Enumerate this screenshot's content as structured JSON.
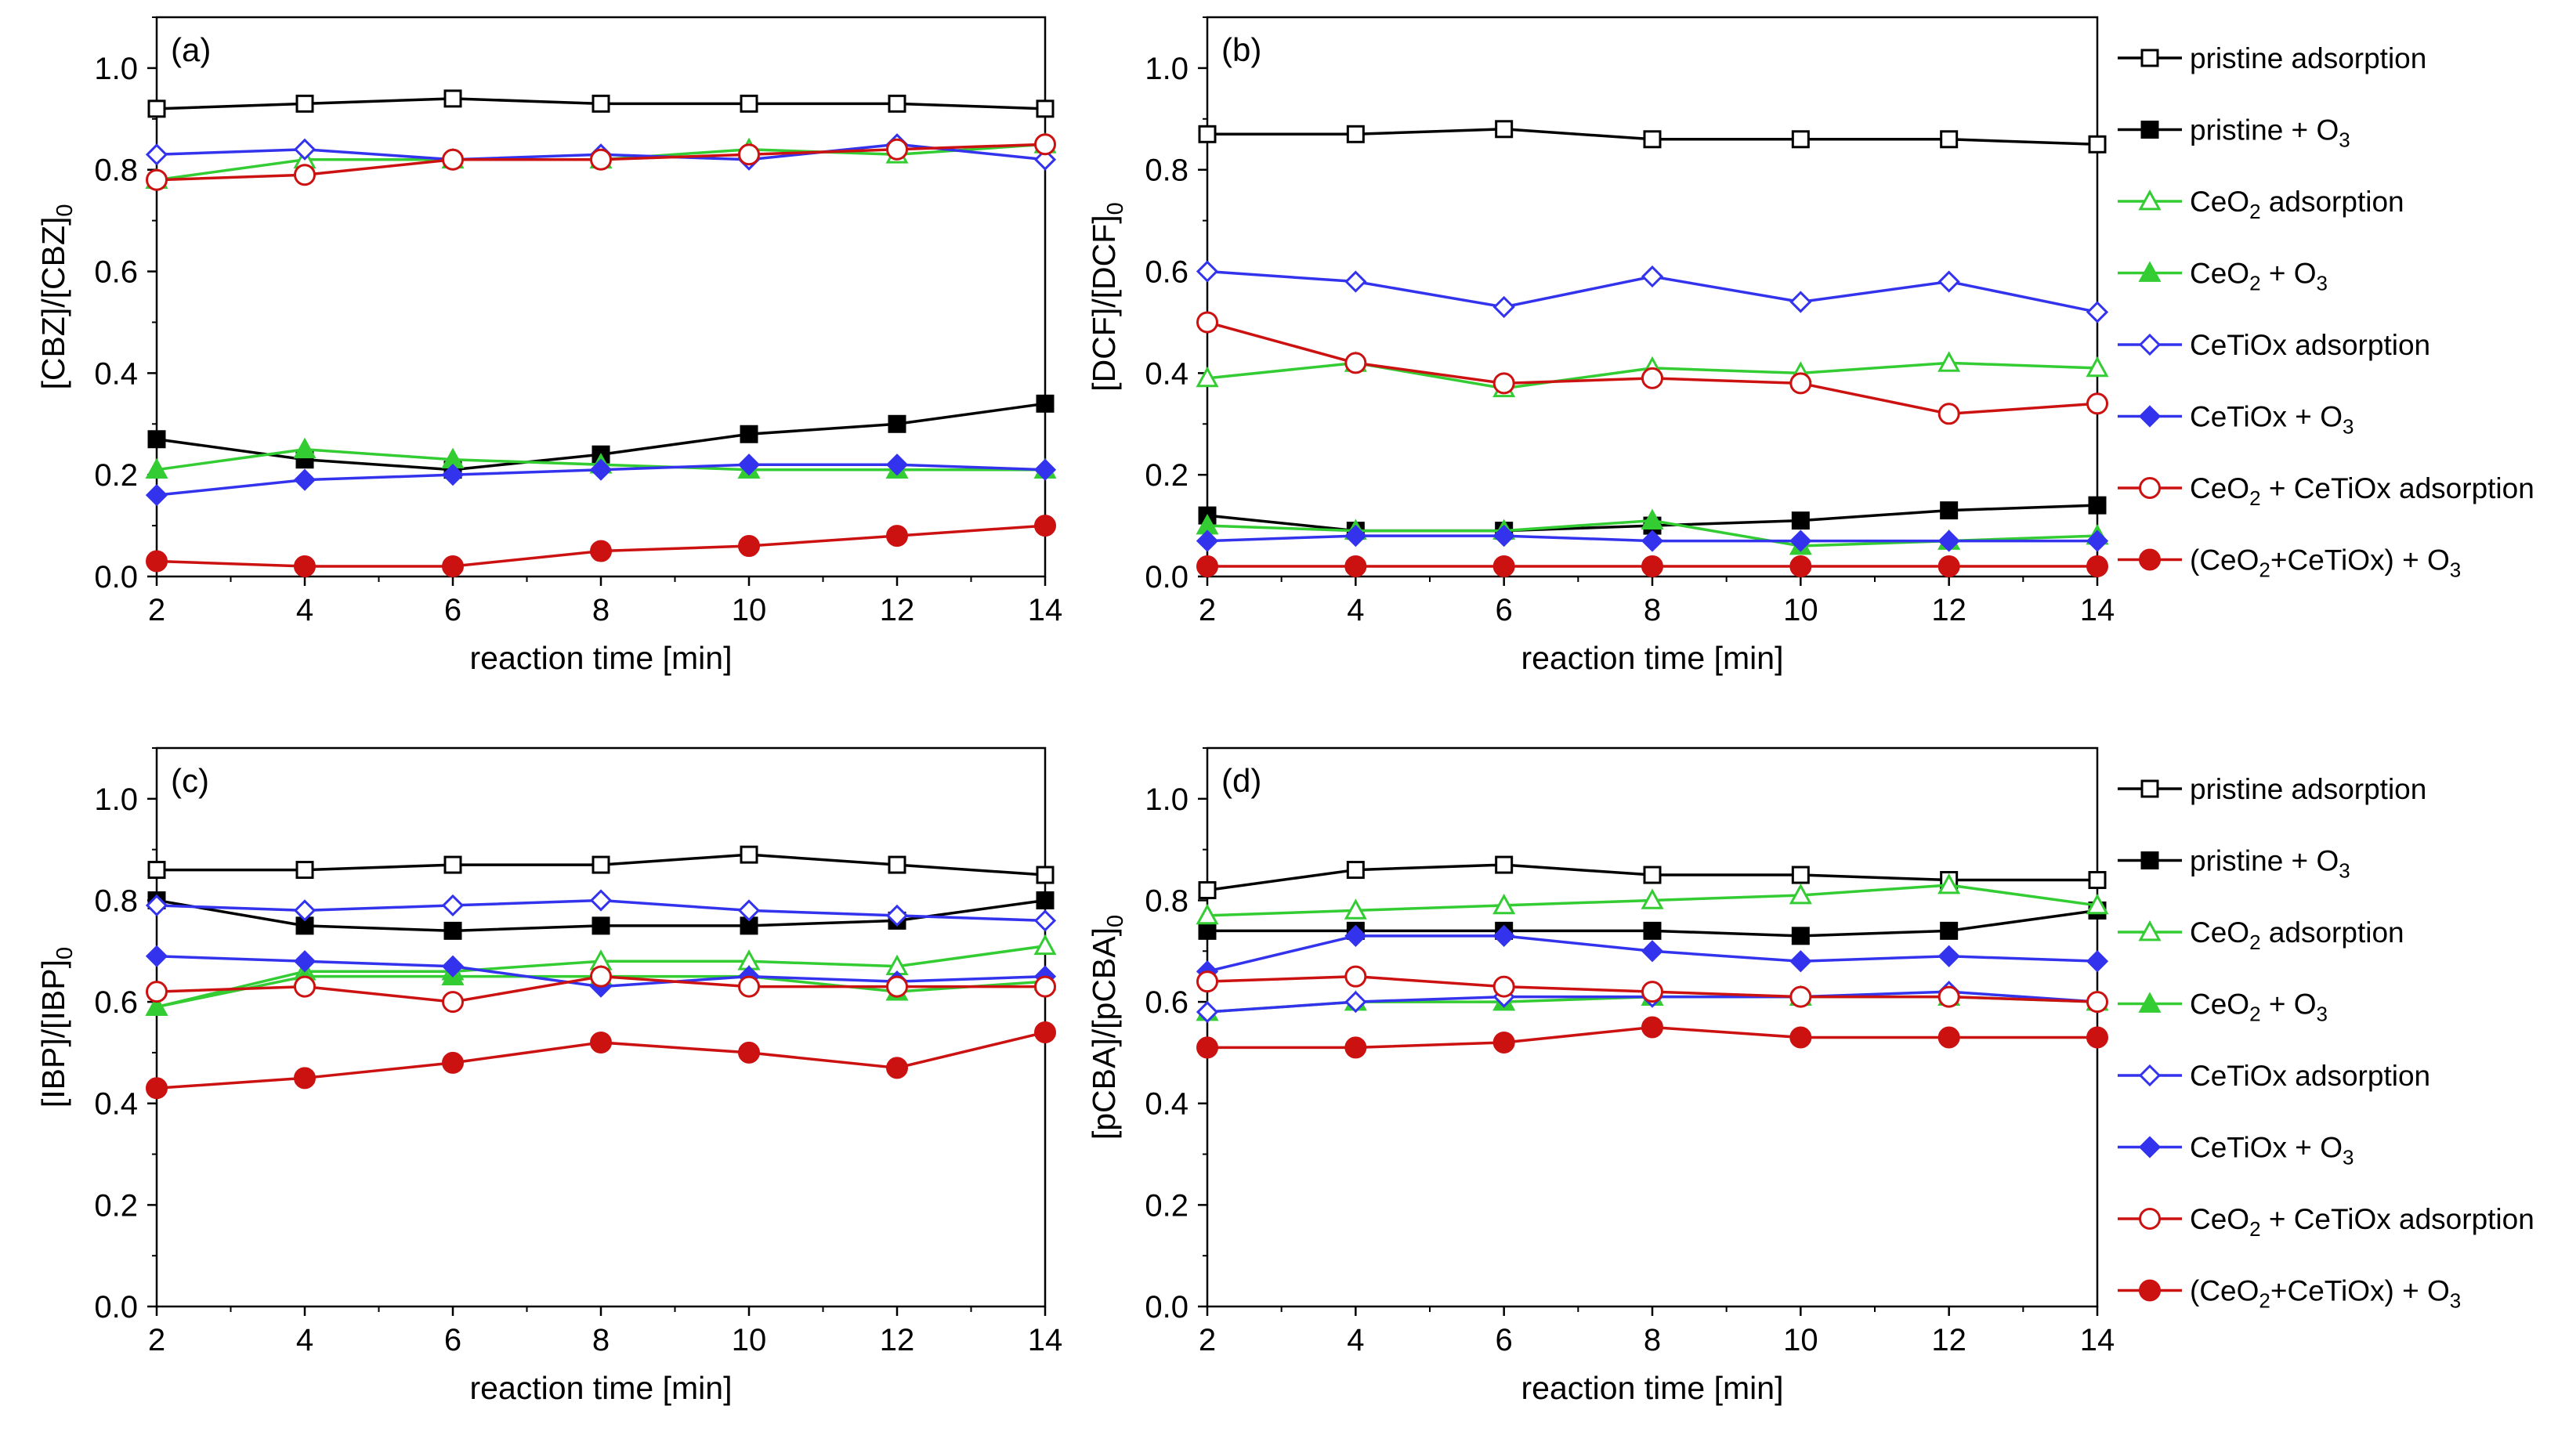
{
  "series_meta": [
    {
      "name": "pristine adsorption",
      "color": "#000000",
      "marker": "square",
      "filled": false,
      "label": {
        "a": "pristine adsorption",
        "s": "",
        "b": ""
      }
    },
    {
      "name": "pristine + O3",
      "color": "#000000",
      "marker": "square",
      "filled": true,
      "label": {
        "a": "pristine + O",
        "s": "3",
        "b": ""
      }
    },
    {
      "name": "CeO2 adsorption",
      "color": "#33cc33",
      "marker": "triangle",
      "filled": false,
      "label": {
        "a": "CeO",
        "s": "2",
        "b": " adsorption"
      }
    },
    {
      "name": "CeO2 + O3",
      "color": "#33cc33",
      "marker": "triangle",
      "filled": true,
      "label": {
        "a": "CeO",
        "s": "2",
        "b": " + O3"
      }
    },
    {
      "name": "CeTiOx adsorption",
      "color": "#3333ee",
      "marker": "diamond",
      "filled": false,
      "label": {
        "a": "CeTiOx adsorption",
        "s": "",
        "b": ""
      }
    },
    {
      "name": "CeTiOx + O3",
      "color": "#3333ee",
      "marker": "diamond",
      "filled": true,
      "label": {
        "a": "CeTiOx + O",
        "s": "3",
        "b": ""
      }
    },
    {
      "name": "CeO2 + CeTiOx adsorption",
      "color": "#cc1111",
      "marker": "circle",
      "filled": false,
      "label": {
        "a": "CeO",
        "s": "2",
        "b": " + CeTiOx adsorption"
      }
    },
    {
      "name": "(CeO2+CeTiOx) + O3",
      "color": "#cc1111",
      "marker": "circle",
      "filled": true,
      "label": {
        "a": "(CeO",
        "s": "2",
        "b": "+CeTiOx) + O3"
      }
    }
  ],
  "chart_data": [
    {
      "type": "line",
      "panel_label": "(a)",
      "title": "",
      "xlabel": "reaction time [min]",
      "ylabel": {
        "main": "[CBZ]/[CBZ]",
        "sub": "0"
      },
      "x": [
        2,
        4,
        6,
        8,
        10,
        12,
        14
      ],
      "xticks": [
        "2",
        "4",
        "6",
        "8",
        "10",
        "12",
        "14"
      ],
      "xlim": [
        2,
        14
      ],
      "ylim": [
        0,
        1.1
      ],
      "yticks": [
        "0.0",
        "0.2",
        "0.4",
        "0.6",
        "0.8",
        "1.0"
      ],
      "series": [
        {
          "name": "pristine adsorption",
          "values": [
            0.92,
            0.93,
            0.94,
            0.93,
            0.93,
            0.93,
            0.92
          ]
        },
        {
          "name": "pristine + O3",
          "values": [
            0.27,
            0.23,
            0.21,
            0.24,
            0.28,
            0.3,
            0.34
          ]
        },
        {
          "name": "CeO2 adsorption",
          "values": [
            0.78,
            0.82,
            0.82,
            0.82,
            0.84,
            0.83,
            0.85
          ]
        },
        {
          "name": "CeO2 + O3",
          "values": [
            0.21,
            0.25,
            0.23,
            0.22,
            0.21,
            0.21,
            0.21
          ]
        },
        {
          "name": "CeTiOx adsorption",
          "values": [
            0.83,
            0.84,
            0.82,
            0.83,
            0.82,
            0.85,
            0.82
          ]
        },
        {
          "name": "CeTiOx + O3",
          "values": [
            0.16,
            0.19,
            0.2,
            0.21,
            0.22,
            0.22,
            0.21
          ]
        },
        {
          "name": "CeO2 + CeTiOx adsorption",
          "values": [
            0.78,
            0.79,
            0.82,
            0.82,
            0.83,
            0.84,
            0.85
          ]
        },
        {
          "name": "(CeO2+CeTiOx) + O3",
          "values": [
            0.03,
            0.02,
            0.02,
            0.05,
            0.06,
            0.08,
            0.1
          ]
        }
      ]
    },
    {
      "type": "line",
      "panel_label": "(b)",
      "title": "",
      "xlabel": "reaction time [min]",
      "ylabel": {
        "main": "[DCF]/[DCF]",
        "sub": "0"
      },
      "x": [
        2,
        4,
        6,
        8,
        10,
        12,
        14
      ],
      "xticks": [
        "2",
        "4",
        "6",
        "8",
        "10",
        "12",
        "14"
      ],
      "xlim": [
        2,
        14
      ],
      "ylim": [
        0,
        1.1
      ],
      "yticks": [
        "0.0",
        "0.2",
        "0.4",
        "0.6",
        "0.8",
        "1.0"
      ],
      "series": [
        {
          "name": "pristine adsorption",
          "values": [
            0.87,
            0.87,
            0.88,
            0.86,
            0.86,
            0.86,
            0.85
          ]
        },
        {
          "name": "pristine + O3",
          "values": [
            0.12,
            0.09,
            0.09,
            0.1,
            0.11,
            0.13,
            0.14
          ]
        },
        {
          "name": "CeO2 adsorption",
          "values": [
            0.39,
            0.42,
            0.37,
            0.41,
            0.4,
            0.42,
            0.41
          ]
        },
        {
          "name": "CeO2 + O3",
          "values": [
            0.1,
            0.09,
            0.09,
            0.11,
            0.06,
            0.07,
            0.08
          ]
        },
        {
          "name": "CeTiOx adsorption",
          "values": [
            0.6,
            0.58,
            0.53,
            0.59,
            0.54,
            0.58,
            0.52
          ]
        },
        {
          "name": "CeTiOx + O3",
          "values": [
            0.07,
            0.08,
            0.08,
            0.07,
            0.07,
            0.07,
            0.07
          ]
        },
        {
          "name": "CeO2 + CeTiOx adsorption",
          "values": [
            0.5,
            0.42,
            0.38,
            0.39,
            0.38,
            0.32,
            0.34
          ]
        },
        {
          "name": "(CeO2+CeTiOx) + O3",
          "values": [
            0.02,
            0.02,
            0.02,
            0.02,
            0.02,
            0.02,
            0.02
          ]
        }
      ]
    },
    {
      "type": "line",
      "panel_label": "(c)",
      "title": "",
      "xlabel": "reaction time [min]",
      "ylabel": {
        "main": "[IBP]/[IBP]",
        "sub": "0"
      },
      "x": [
        2,
        4,
        6,
        8,
        10,
        12,
        14
      ],
      "xticks": [
        "2",
        "4",
        "6",
        "8",
        "10",
        "12",
        "14"
      ],
      "xlim": [
        2,
        14
      ],
      "ylim": [
        0,
        1.1
      ],
      "yticks": [
        "0.0",
        "0.2",
        "0.4",
        "0.6",
        "0.8",
        "1.0"
      ],
      "series": [
        {
          "name": "pristine adsorption",
          "values": [
            0.86,
            0.86,
            0.87,
            0.87,
            0.89,
            0.87,
            0.85
          ]
        },
        {
          "name": "pristine + O3",
          "values": [
            0.8,
            0.75,
            0.74,
            0.75,
            0.75,
            0.76,
            0.8
          ]
        },
        {
          "name": "CeO2 adsorption",
          "values": [
            0.59,
            0.66,
            0.66,
            0.68,
            0.68,
            0.67,
            0.71
          ]
        },
        {
          "name": "CeO2 + O3",
          "values": [
            0.59,
            0.65,
            0.65,
            0.65,
            0.65,
            0.62,
            0.64
          ]
        },
        {
          "name": "CeTiOx adsorption",
          "values": [
            0.79,
            0.78,
            0.79,
            0.8,
            0.78,
            0.77,
            0.76
          ]
        },
        {
          "name": "CeTiOx + O3",
          "values": [
            0.69,
            0.68,
            0.67,
            0.63,
            0.65,
            0.64,
            0.65
          ]
        },
        {
          "name": "CeO2 + CeTiOx adsorption",
          "values": [
            0.62,
            0.63,
            0.6,
            0.65,
            0.63,
            0.63,
            0.63
          ]
        },
        {
          "name": "(CeO2+CeTiOx) + O3",
          "values": [
            0.43,
            0.45,
            0.48,
            0.52,
            0.5,
            0.47,
            0.54
          ]
        }
      ]
    },
    {
      "type": "line",
      "panel_label": "(d)",
      "title": "",
      "xlabel": "reaction time [min]",
      "ylabel": {
        "main": "[pCBA]/[pCBA]",
        "sub": "0"
      },
      "x": [
        2,
        4,
        6,
        8,
        10,
        12,
        14
      ],
      "xticks": [
        "2",
        "4",
        "6",
        "8",
        "10",
        "12",
        "14"
      ],
      "xlim": [
        2,
        14
      ],
      "ylim": [
        0,
        1.1
      ],
      "yticks": [
        "0.0",
        "0.2",
        "0.4",
        "0.6",
        "0.8",
        "1.0"
      ],
      "series": [
        {
          "name": "pristine adsorption",
          "values": [
            0.82,
            0.86,
            0.87,
            0.85,
            0.85,
            0.84,
            0.84
          ]
        },
        {
          "name": "pristine + O3",
          "values": [
            0.74,
            0.74,
            0.74,
            0.74,
            0.73,
            0.74,
            0.78
          ]
        },
        {
          "name": "CeO2 adsorption",
          "values": [
            0.77,
            0.78,
            0.79,
            0.8,
            0.81,
            0.83,
            0.79
          ]
        },
        {
          "name": "CeO2 + O3",
          "values": [
            0.58,
            0.6,
            0.6,
            0.61,
            0.61,
            0.61,
            0.6
          ]
        },
        {
          "name": "CeTiOx adsorption",
          "values": [
            0.58,
            0.6,
            0.61,
            0.61,
            0.61,
            0.62,
            0.6
          ]
        },
        {
          "name": "CeTiOx + O3",
          "values": [
            0.66,
            0.73,
            0.73,
            0.7,
            0.68,
            0.69,
            0.68
          ]
        },
        {
          "name": "CeO2 + CeTiOx adsorption",
          "values": [
            0.64,
            0.65,
            0.63,
            0.62,
            0.61,
            0.61,
            0.6
          ]
        },
        {
          "name": "(CeO2+CeTiOx) + O3",
          "values": [
            0.51,
            0.51,
            0.52,
            0.55,
            0.53,
            0.53,
            0.53
          ]
        }
      ]
    }
  ]
}
